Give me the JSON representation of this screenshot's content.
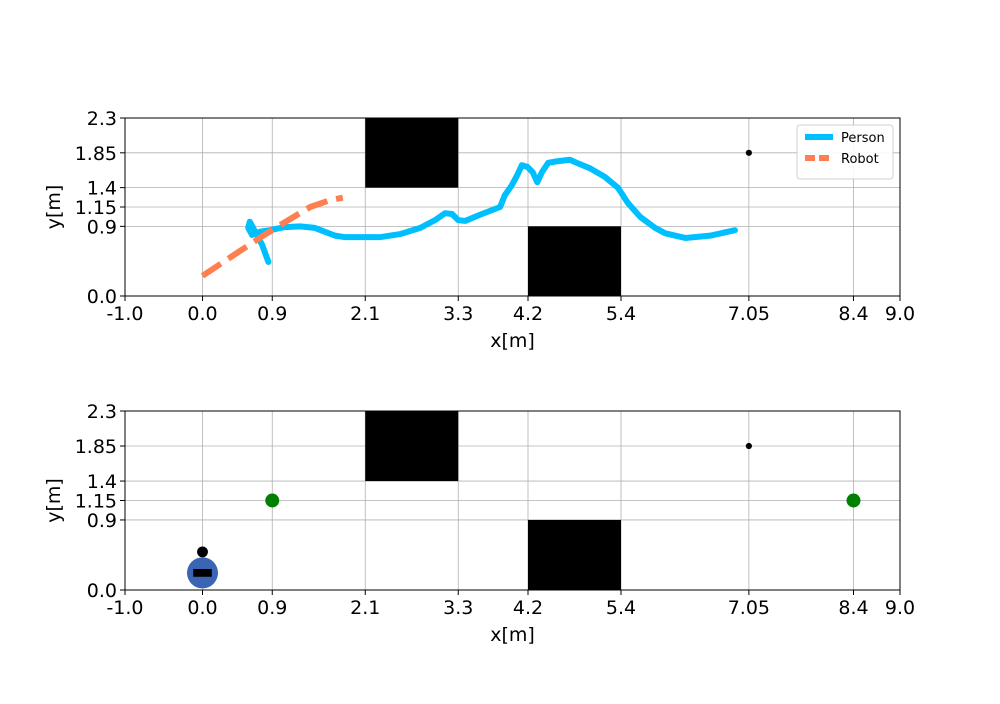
{
  "chart_data": [
    {
      "type": "line",
      "xlabel": "x[m]",
      "ylabel": "y[m]",
      "grid": true,
      "legend": "upper right",
      "xlim": [
        -1,
        9
      ],
      "ylim": [
        0,
        2.3
      ],
      "xticks": [
        {
          "value": -1,
          "label": "-1.0"
        },
        {
          "value": 0,
          "label": "0.0"
        },
        0.9,
        2.1,
        3.3,
        4.2,
        5.4,
        7.05,
        8.4,
        {
          "value": 9,
          "label": "9.0"
        }
      ],
      "yticks": [
        {
          "value": 0,
          "label": "0.0"
        },
        0.9,
        1.15,
        1.4,
        1.85,
        2.3
      ],
      "obstacles": [
        {
          "x": [
            2.1,
            3.3
          ],
          "y": [
            1.4,
            2.3
          ],
          "color": "#000000"
        },
        {
          "x": [
            4.2,
            5.4
          ],
          "y": [
            0,
            0.9
          ],
          "color": "#000000"
        }
      ],
      "points": [
        {
          "x": 7.05,
          "y": 1.85,
          "radius": 0.04,
          "color": "#000000"
        }
      ],
      "series": [
        {
          "name": "Person",
          "color": "#00bfff",
          "dash": false,
          "x": [
            0.85,
            0.77,
            0.68,
            0.61,
            0.59,
            0.64,
            0.74,
            0.87,
            1.06,
            1.26,
            1.45,
            1.58,
            1.71,
            1.84,
            2.1,
            2.29,
            2.55,
            2.81,
            3.0,
            3.13,
            3.22,
            3.3,
            3.39,
            3.58,
            3.84,
            3.9,
            3.99,
            4.06,
            4.12,
            4.19,
            4.26,
            4.32,
            4.38,
            4.46,
            4.57,
            4.74,
            4.83,
            5.0,
            5.19,
            5.36,
            5.49,
            5.65,
            5.84,
            5.97,
            6.23,
            6.55,
            6.87
          ],
          "y": [
            0.44,
            0.66,
            0.83,
            0.96,
            0.88,
            0.79,
            0.83,
            0.85,
            0.89,
            0.9,
            0.88,
            0.83,
            0.78,
            0.76,
            0.76,
            0.76,
            0.8,
            0.88,
            0.98,
            1.07,
            1.06,
            0.98,
            0.97,
            1.05,
            1.15,
            1.3,
            1.43,
            1.56,
            1.69,
            1.67,
            1.6,
            1.47,
            1.6,
            1.72,
            1.74,
            1.76,
            1.72,
            1.65,
            1.54,
            1.4,
            1.2,
            1.02,
            0.88,
            0.81,
            0.75,
            0.78,
            0.85
          ]
        },
        {
          "name": "Robot",
          "color": "#ff7f50",
          "dash": true,
          "x": [
            0.0,
            0.48,
            0.94,
            1.39,
            1.65,
            1.81
          ],
          "y": [
            0.26,
            0.58,
            0.88,
            1.15,
            1.24,
            1.27
          ]
        }
      ]
    },
    {
      "type": "scatter",
      "xlabel": "x[m]",
      "ylabel": "y[m]",
      "grid": true,
      "xlim": [
        -1,
        9
      ],
      "ylim": [
        0,
        2.3
      ],
      "xticks": [
        {
          "value": -1,
          "label": "-1.0"
        },
        {
          "value": 0,
          "label": "0.0"
        },
        0.9,
        2.1,
        3.3,
        4.2,
        5.4,
        7.05,
        8.4,
        {
          "value": 9,
          "label": "9.0"
        }
      ],
      "yticks": [
        {
          "value": 0,
          "label": "0.0"
        },
        0.9,
        1.15,
        1.4,
        1.85,
        2.3
      ],
      "obstacles": [
        {
          "x": [
            2.1,
            3.3
          ],
          "y": [
            1.4,
            2.3
          ],
          "color": "#000000"
        },
        {
          "x": [
            4.2,
            5.4
          ],
          "y": [
            0,
            0.9
          ],
          "color": "#000000"
        }
      ],
      "points": [
        {
          "x": 7.05,
          "y": 1.85,
          "radius": 0.04,
          "color": "#000000"
        },
        {
          "x": 0.9,
          "y": 1.15,
          "radius": 0.09,
          "color": "#008000"
        },
        {
          "x": 8.4,
          "y": 1.15,
          "radius": 0.09,
          "color": "#008000"
        },
        {
          "x": 0.0,
          "y": 0.22,
          "radius": 0.2,
          "color": "#3a64b4",
          "inner_color": "#000000"
        },
        {
          "x": 0.0,
          "y": 0.49,
          "radius": 0.07,
          "color": "#000000"
        }
      ]
    }
  ]
}
